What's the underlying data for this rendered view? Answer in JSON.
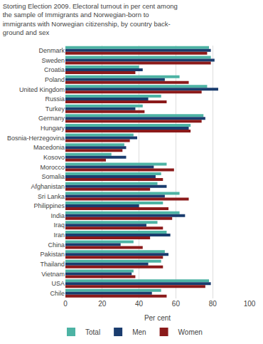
{
  "chart_data": {
    "type": "bar",
    "orientation": "horizontal",
    "title": "Storting Election 2009. Electoral turnout in per cent among\nthe sample of Immigrants and Norwegian-born to\nimmigrants with Norwegian citizenship, by country back-\nground and sex",
    "xlabel": "Per cent",
    "categories": [
      "Denmark",
      "Sweden",
      "Croatia",
      "Poland",
      "United Kingdom",
      "Russia",
      "Turkey",
      "Germany",
      "Hungary",
      "Bosnia-Herzegovina",
      "Macedonia",
      "Kosovo",
      "Morocco",
      "Somalia",
      "Afghanistan",
      "Sri Lanka",
      "Philippines",
      "India",
      "Iraq",
      "Iran",
      "China",
      "Pakistan",
      "Thailand",
      "Vietnam",
      "USA",
      "Chile"
    ],
    "series": [
      {
        "name": "Total",
        "color": "#4db3a4",
        "values": [
          78,
          79,
          40,
          62,
          77,
          52,
          42,
          75,
          68,
          37,
          32,
          25,
          55,
          52,
          50,
          62,
          53,
          62,
          50,
          55,
          37,
          54,
          52,
          37,
          78,
          52
        ]
      },
      {
        "name": "Men",
        "color": "#1a3c6e",
        "values": [
          79,
          81,
          42,
          54,
          83,
          45,
          38,
          76,
          67,
          39,
          33,
          33,
          48,
          49,
          55,
          54,
          40,
          65,
          44,
          57,
          30,
          56,
          45,
          36,
          79,
          47
        ]
      },
      {
        "name": "Women",
        "color": "#8b1a1a",
        "values": [
          77,
          79,
          38,
          67,
          74,
          55,
          43,
          74,
          68,
          35,
          31,
          22,
          59,
          53,
          46,
          67,
          56,
          58,
          53,
          46,
          42,
          53,
          53,
          38,
          76,
          55
        ]
      }
    ],
    "xlim": [
      0,
      100
    ],
    "xticks": [
      0,
      20,
      40,
      60,
      80,
      100
    ],
    "grid": true,
    "legend": "bottom"
  }
}
